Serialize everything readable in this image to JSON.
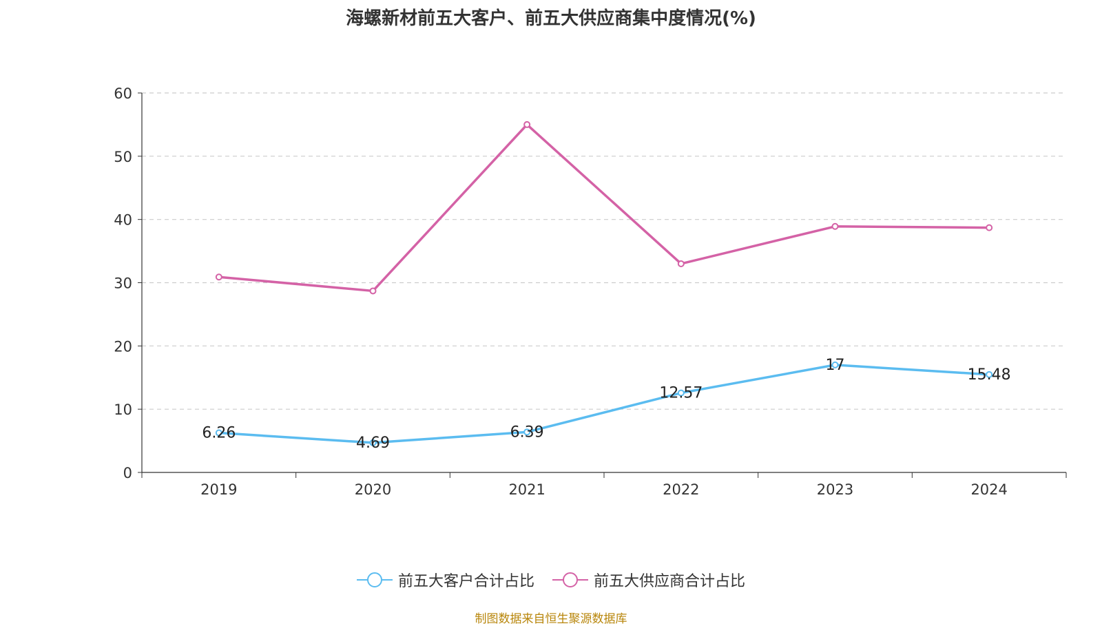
{
  "chart_data": {
    "type": "line",
    "title": "海螺新材前五大客户、前五大供应商集中度情况(%)",
    "categories": [
      "2019",
      "2020",
      "2021",
      "2022",
      "2023",
      "2024"
    ],
    "ylim": [
      0,
      60
    ],
    "yticks": [
      0,
      10,
      20,
      30,
      40,
      50,
      60
    ],
    "grid": true,
    "legend_position": "bottom",
    "series": [
      {
        "name": "前五大客户合计占比",
        "color": "#5bbcf0",
        "values": [
          6.26,
          4.69,
          6.39,
          12.57,
          17,
          15.48
        ],
        "labels": [
          "6.26",
          "4.69",
          "6.39",
          "12.57",
          "17",
          "15.48"
        ],
        "show_labels": true
      },
      {
        "name": "前五大供应商合计占比",
        "color": "#d462a6",
        "values": [
          30.9,
          28.7,
          55.0,
          33.0,
          38.9,
          38.7
        ],
        "show_labels": false
      }
    ]
  },
  "footer": {
    "source": "制图数据来自恒生聚源数据库"
  }
}
